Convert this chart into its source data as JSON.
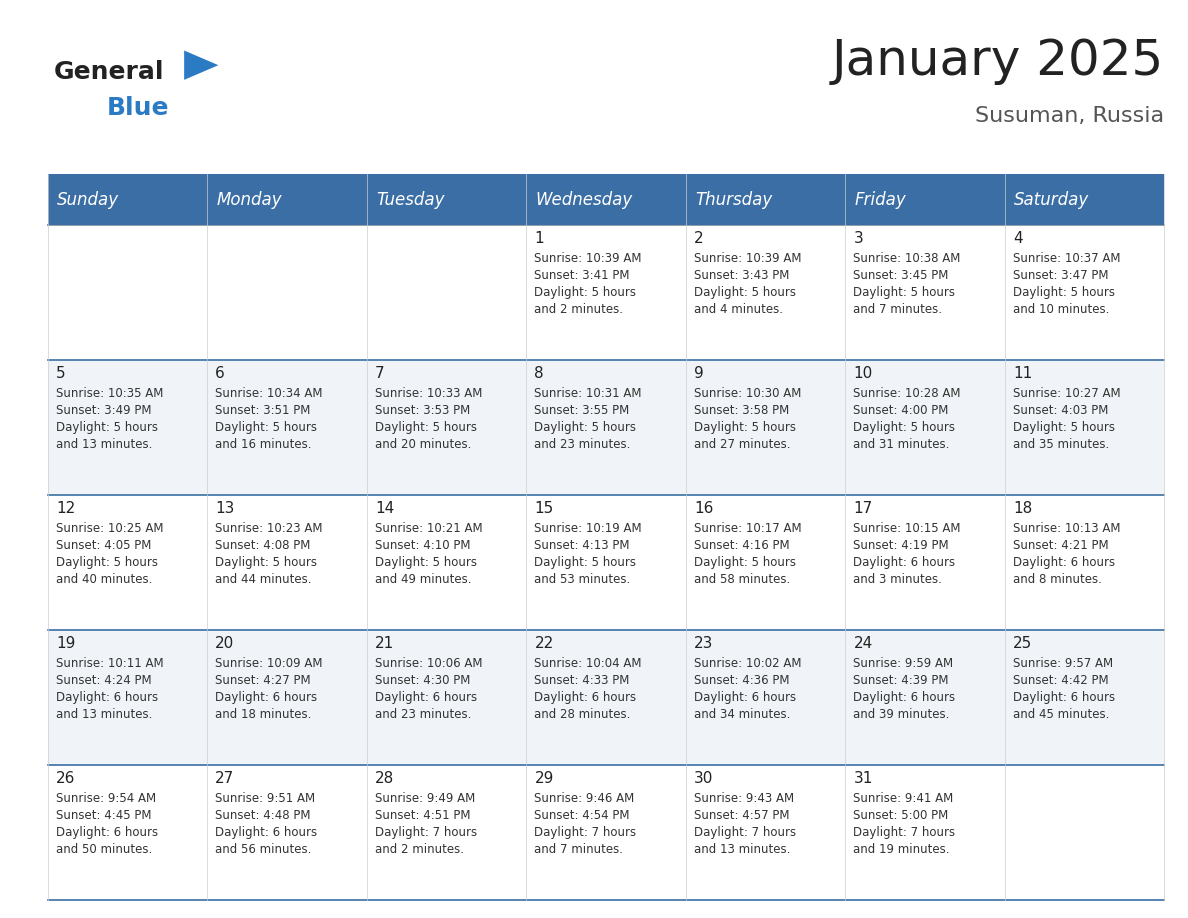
{
  "title": "January 2025",
  "subtitle": "Susuman, Russia",
  "header_bg_color": "#3a6ea5",
  "header_text_color": "#ffffff",
  "row_bg_color1": "#ffffff",
  "row_bg_color2": "#f0f4f8",
  "cell_border_color": "#3a6ea5",
  "day_headers": [
    "Sunday",
    "Monday",
    "Tuesday",
    "Wednesday",
    "Thursday",
    "Friday",
    "Saturday"
  ],
  "days": [
    {
      "day": 1,
      "col": 3,
      "row": 0,
      "sunrise": "10:39 AM",
      "sunset": "3:41 PM",
      "daylight": "5 hours\nand 2 minutes."
    },
    {
      "day": 2,
      "col": 4,
      "row": 0,
      "sunrise": "10:39 AM",
      "sunset": "3:43 PM",
      "daylight": "5 hours\nand 4 minutes."
    },
    {
      "day": 3,
      "col": 5,
      "row": 0,
      "sunrise": "10:38 AM",
      "sunset": "3:45 PM",
      "daylight": "5 hours\nand 7 minutes."
    },
    {
      "day": 4,
      "col": 6,
      "row": 0,
      "sunrise": "10:37 AM",
      "sunset": "3:47 PM",
      "daylight": "5 hours\nand 10 minutes."
    },
    {
      "day": 5,
      "col": 0,
      "row": 1,
      "sunrise": "10:35 AM",
      "sunset": "3:49 PM",
      "daylight": "5 hours\nand 13 minutes."
    },
    {
      "day": 6,
      "col": 1,
      "row": 1,
      "sunrise": "10:34 AM",
      "sunset": "3:51 PM",
      "daylight": "5 hours\nand 16 minutes."
    },
    {
      "day": 7,
      "col": 2,
      "row": 1,
      "sunrise": "10:33 AM",
      "sunset": "3:53 PM",
      "daylight": "5 hours\nand 20 minutes."
    },
    {
      "day": 8,
      "col": 3,
      "row": 1,
      "sunrise": "10:31 AM",
      "sunset": "3:55 PM",
      "daylight": "5 hours\nand 23 minutes."
    },
    {
      "day": 9,
      "col": 4,
      "row": 1,
      "sunrise": "10:30 AM",
      "sunset": "3:58 PM",
      "daylight": "5 hours\nand 27 minutes."
    },
    {
      "day": 10,
      "col": 5,
      "row": 1,
      "sunrise": "10:28 AM",
      "sunset": "4:00 PM",
      "daylight": "5 hours\nand 31 minutes."
    },
    {
      "day": 11,
      "col": 6,
      "row": 1,
      "sunrise": "10:27 AM",
      "sunset": "4:03 PM",
      "daylight": "5 hours\nand 35 minutes."
    },
    {
      "day": 12,
      "col": 0,
      "row": 2,
      "sunrise": "10:25 AM",
      "sunset": "4:05 PM",
      "daylight": "5 hours\nand 40 minutes."
    },
    {
      "day": 13,
      "col": 1,
      "row": 2,
      "sunrise": "10:23 AM",
      "sunset": "4:08 PM",
      "daylight": "5 hours\nand 44 minutes."
    },
    {
      "day": 14,
      "col": 2,
      "row": 2,
      "sunrise": "10:21 AM",
      "sunset": "4:10 PM",
      "daylight": "5 hours\nand 49 minutes."
    },
    {
      "day": 15,
      "col": 3,
      "row": 2,
      "sunrise": "10:19 AM",
      "sunset": "4:13 PM",
      "daylight": "5 hours\nand 53 minutes."
    },
    {
      "day": 16,
      "col": 4,
      "row": 2,
      "sunrise": "10:17 AM",
      "sunset": "4:16 PM",
      "daylight": "5 hours\nand 58 minutes."
    },
    {
      "day": 17,
      "col": 5,
      "row": 2,
      "sunrise": "10:15 AM",
      "sunset": "4:19 PM",
      "daylight": "6 hours\nand 3 minutes."
    },
    {
      "day": 18,
      "col": 6,
      "row": 2,
      "sunrise": "10:13 AM",
      "sunset": "4:21 PM",
      "daylight": "6 hours\nand 8 minutes."
    },
    {
      "day": 19,
      "col": 0,
      "row": 3,
      "sunrise": "10:11 AM",
      "sunset": "4:24 PM",
      "daylight": "6 hours\nand 13 minutes."
    },
    {
      "day": 20,
      "col": 1,
      "row": 3,
      "sunrise": "10:09 AM",
      "sunset": "4:27 PM",
      "daylight": "6 hours\nand 18 minutes."
    },
    {
      "day": 21,
      "col": 2,
      "row": 3,
      "sunrise": "10:06 AM",
      "sunset": "4:30 PM",
      "daylight": "6 hours\nand 23 minutes."
    },
    {
      "day": 22,
      "col": 3,
      "row": 3,
      "sunrise": "10:04 AM",
      "sunset": "4:33 PM",
      "daylight": "6 hours\nand 28 minutes."
    },
    {
      "day": 23,
      "col": 4,
      "row": 3,
      "sunrise": "10:02 AM",
      "sunset": "4:36 PM",
      "daylight": "6 hours\nand 34 minutes."
    },
    {
      "day": 24,
      "col": 5,
      "row": 3,
      "sunrise": "9:59 AM",
      "sunset": "4:39 PM",
      "daylight": "6 hours\nand 39 minutes."
    },
    {
      "day": 25,
      "col": 6,
      "row": 3,
      "sunrise": "9:57 AM",
      "sunset": "4:42 PM",
      "daylight": "6 hours\nand 45 minutes."
    },
    {
      "day": 26,
      "col": 0,
      "row": 4,
      "sunrise": "9:54 AM",
      "sunset": "4:45 PM",
      "daylight": "6 hours\nand 50 minutes."
    },
    {
      "day": 27,
      "col": 1,
      "row": 4,
      "sunrise": "9:51 AM",
      "sunset": "4:48 PM",
      "daylight": "6 hours\nand 56 minutes."
    },
    {
      "day": 28,
      "col": 2,
      "row": 4,
      "sunrise": "9:49 AM",
      "sunset": "4:51 PM",
      "daylight": "7 hours\nand 2 minutes."
    },
    {
      "day": 29,
      "col": 3,
      "row": 4,
      "sunrise": "9:46 AM",
      "sunset": "4:54 PM",
      "daylight": "7 hours\nand 7 minutes."
    },
    {
      "day": 30,
      "col": 4,
      "row": 4,
      "sunrise": "9:43 AM",
      "sunset": "4:57 PM",
      "daylight": "7 hours\nand 13 minutes."
    },
    {
      "day": 31,
      "col": 5,
      "row": 4,
      "sunrise": "9:41 AM",
      "sunset": "5:00 PM",
      "daylight": "7 hours\nand 19 minutes."
    }
  ],
  "num_rows": 5,
  "num_cols": 7,
  "title_fontsize": 36,
  "subtitle_fontsize": 16,
  "header_fontsize": 12,
  "day_num_fontsize": 11,
  "cell_text_fontsize": 8.5,
  "logo_text1": "General",
  "logo_text2": "Blue",
  "logo_color1": "#222222",
  "logo_color2": "#2b7bc4"
}
